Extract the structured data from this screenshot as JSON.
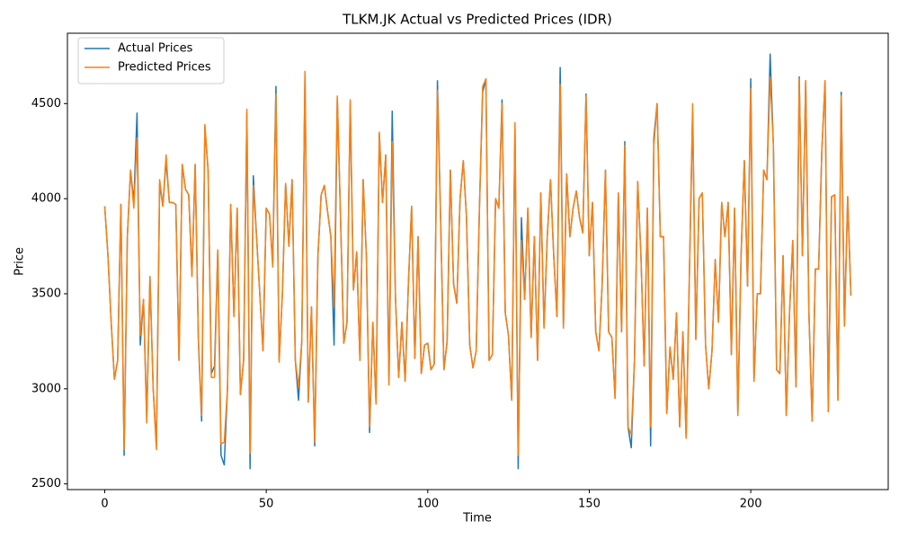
{
  "chart_data": {
    "type": "line",
    "title": "TLKM.JK Actual vs Predicted Prices (IDR)",
    "xlabel": "Time",
    "ylabel": "Price",
    "legend": "upper left",
    "grid": false,
    "xlim": [
      -11.55,
      242.55
    ],
    "ylim": [
      2470,
      4870
    ],
    "xticks": [
      0,
      50,
      100,
      150,
      200
    ],
    "yticks": [
      2500,
      3000,
      3500,
      4000,
      4500
    ],
    "x": [
      0,
      1,
      2,
      3,
      4,
      5,
      6,
      7,
      8,
      9,
      10,
      11,
      12,
      13,
      14,
      15,
      16,
      17,
      18,
      19,
      20,
      21,
      22,
      23,
      24,
      25,
      26,
      27,
      28,
      29,
      30,
      31,
      32,
      33,
      34,
      35,
      36,
      37,
      38,
      39,
      40,
      41,
      42,
      43,
      44,
      45,
      46,
      47,
      48,
      49,
      50,
      51,
      52,
      53,
      54,
      55,
      56,
      57,
      58,
      59,
      60,
      61,
      62,
      63,
      64,
      65,
      66,
      67,
      68,
      69,
      70,
      71,
      72,
      73,
      74,
      75,
      76,
      77,
      78,
      79,
      80,
      81,
      82,
      83,
      84,
      85,
      86,
      87,
      88,
      89,
      90,
      91,
      92,
      93,
      94,
      95,
      96,
      97,
      98,
      99,
      100,
      101,
      102,
      103,
      104,
      105,
      106,
      107,
      108,
      109,
      110,
      111,
      112,
      113,
      114,
      115,
      116,
      117,
      118,
      119,
      120,
      121,
      122,
      123,
      124,
      125,
      126,
      127,
      128,
      129,
      130,
      131,
      132,
      133,
      134,
      135,
      136,
      137,
      138,
      139,
      140,
      141,
      142,
      143,
      144,
      145,
      146,
      147,
      148,
      149,
      150,
      151,
      152,
      153,
      154,
      155,
      156,
      157,
      158,
      159,
      160,
      161,
      162,
      163,
      164,
      165,
      166,
      167,
      168,
      169,
      170,
      171,
      172,
      173,
      174,
      175,
      176,
      177,
      178,
      179,
      180,
      181,
      182,
      183,
      184,
      185,
      186,
      187,
      188,
      189,
      190,
      191,
      192,
      193,
      194,
      195,
      196,
      197,
      198,
      199,
      200,
      201,
      202,
      203,
      204,
      205,
      206,
      207,
      208,
      209,
      210,
      211,
      212,
      213,
      214,
      215,
      216,
      217,
      218,
      219,
      220,
      221,
      222,
      223,
      224,
      225,
      226,
      227,
      228,
      229,
      230,
      231
    ],
    "series": [
      {
        "name": "Actual Prices",
        "color": "#1f77b4",
        "values": [
          3960,
          3700,
          3350,
          3050,
          3150,
          3970,
          2650,
          3800,
          4150,
          3980,
          4450,
          3230,
          3470,
          2850,
          3590,
          3000,
          2700,
          4080,
          3960,
          4200,
          3980,
          3980,
          3970,
          3150,
          4180,
          4050,
          4020,
          3600,
          4180,
          3250,
          2830,
          4380,
          4150,
          3080,
          3120,
          3730,
          2650,
          2600,
          3000,
          3970,
          3380,
          3950,
          2970,
          3150,
          4450,
          2580,
          4120,
          3800,
          3500,
          3200,
          3950,
          3920,
          3660,
          4590,
          3150,
          3500,
          4080,
          3750,
          4100,
          3150,
          2940,
          3250,
          4660,
          2930,
          3430,
          2700,
          3700,
          4020,
          4070,
          3930,
          3800,
          3230,
          4530,
          3900,
          3240,
          3350,
          4500,
          3520,
          3720,
          3150,
          4100,
          3700,
          2770,
          3350,
          2920,
          4340,
          3980,
          4230,
          3030,
          4460,
          3480,
          3060,
          3350,
          3040,
          3550,
          3960,
          3160,
          3800,
          3080,
          3230,
          3240,
          3100,
          3130,
          4620,
          3880,
          3100,
          3250,
          4150,
          3550,
          3450,
          4000,
          4200,
          3900,
          3230,
          3110,
          3200,
          3950,
          4560,
          4630,
          3150,
          3180,
          4000,
          3950,
          4520,
          3400,
          3280,
          2940,
          4370,
          2580,
          3900,
          3470,
          3950,
          3270,
          3800,
          3150,
          4030,
          3320,
          3800,
          4100,
          3700,
          3380,
          4690,
          3320,
          4130,
          3800,
          3950,
          4040,
          3900,
          3820,
          4550,
          3700,
          3980,
          3300,
          3200,
          3550,
          4150,
          3300,
          3270,
          2950,
          4030,
          3300,
          4300,
          2800,
          2690,
          3150,
          4090,
          3700,
          3120,
          3950,
          2700,
          4320,
          4500,
          3800,
          3800,
          2870,
          3220,
          3050,
          3400,
          2800,
          3300,
          2740,
          3600,
          4450,
          3260,
          4000,
          4030,
          3230,
          3000,
          3200,
          3680,
          3350,
          3980,
          3800,
          3980,
          3180,
          3950,
          2860,
          3700,
          4200,
          3540,
          4630,
          3040,
          3500,
          3500,
          4150,
          4100,
          4760,
          4280,
          3100,
          3080,
          3700,
          2860,
          3400,
          3780,
          3010,
          4640,
          3700,
          4620,
          3400,
          2830,
          3630,
          3630,
          4250,
          4620,
          2880,
          4010,
          4020,
          2940,
          4560,
          3330,
          4010,
          3490
        ]
      },
      {
        "name": "Predicted Prices",
        "color": "#ff7f0e",
        "values": [
          3960,
          3700,
          3350,
          3050,
          3150,
          3970,
          2680,
          3800,
          4150,
          3950,
          4320,
          3280,
          3470,
          2820,
          3590,
          3000,
          2680,
          4100,
          3960,
          4230,
          3980,
          3980,
          3970,
          3150,
          4180,
          4050,
          4020,
          3590,
          4180,
          3260,
          2860,
          4390,
          4150,
          3060,
          3060,
          3730,
          2710,
          2720,
          3000,
          3970,
          3380,
          3950,
          2970,
          3150,
          4470,
          2660,
          4070,
          3800,
          3500,
          3200,
          3950,
          3920,
          3640,
          4550,
          3140,
          3500,
          4080,
          3750,
          4100,
          3150,
          3010,
          3250,
          4670,
          2930,
          3430,
          2720,
          3700,
          4020,
          4070,
          3930,
          3800,
          3430,
          4540,
          3900,
          3240,
          3350,
          4520,
          3520,
          3720,
          3150,
          4100,
          3700,
          2800,
          3350,
          2920,
          4350,
          3980,
          4230,
          3020,
          4300,
          3480,
          3060,
          3350,
          3040,
          3550,
          3960,
          3160,
          3800,
          3080,
          3230,
          3240,
          3100,
          3130,
          4570,
          3880,
          3100,
          3250,
          4150,
          3550,
          3450,
          4000,
          4200,
          3900,
          3230,
          3110,
          3200,
          3950,
          4590,
          4630,
          3150,
          3180,
          4000,
          3950,
          4500,
          3400,
          3280,
          2940,
          4400,
          2650,
          3780,
          3470,
          3950,
          3270,
          3800,
          3150,
          4030,
          3320,
          3800,
          4100,
          3700,
          3380,
          4600,
          3320,
          4130,
          3800,
          3950,
          4040,
          3900,
          3820,
          4540,
          3700,
          3980,
          3300,
          3200,
          3550,
          4150,
          3300,
          3270,
          2950,
          4030,
          3300,
          4280,
          2800,
          2760,
          3150,
          4090,
          3700,
          3120,
          3950,
          2800,
          4280,
          4500,
          3800,
          3800,
          2870,
          3220,
          3050,
          3400,
          2800,
          3300,
          2740,
          3600,
          4500,
          3260,
          4000,
          4030,
          3230,
          3000,
          3200,
          3680,
          3350,
          3980,
          3800,
          3980,
          3180,
          3950,
          2860,
          3700,
          4200,
          3540,
          4580,
          3040,
          3500,
          3500,
          4150,
          4100,
          4640,
          4280,
          3100,
          3080,
          3700,
          2860,
          3400,
          3780,
          3010,
          4630,
          3700,
          4620,
          3400,
          2830,
          3630,
          3630,
          4250,
          4620,
          2880,
          4010,
          4020,
          2940,
          4540,
          3330,
          4010,
          3490
        ]
      }
    ]
  }
}
